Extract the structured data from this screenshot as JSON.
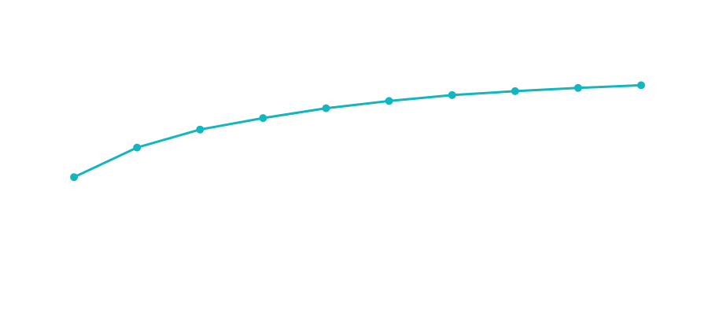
{
  "chart_data": {
    "type": "line",
    "x": [
      1,
      2,
      3,
      4,
      5,
      6,
      7,
      8,
      9,
      10
    ],
    "series": [
      {
        "values": [
          46,
          55,
          60.5,
          64,
          67,
          69.2,
          71,
          72.2,
          73.2,
          74
        ],
        "color": "#13b5be"
      }
    ],
    "xlim": [
      0,
      10.5
    ],
    "ylim": [
      0,
      100
    ],
    "grid": false,
    "axes_visible": false,
    "marker": "circle"
  }
}
